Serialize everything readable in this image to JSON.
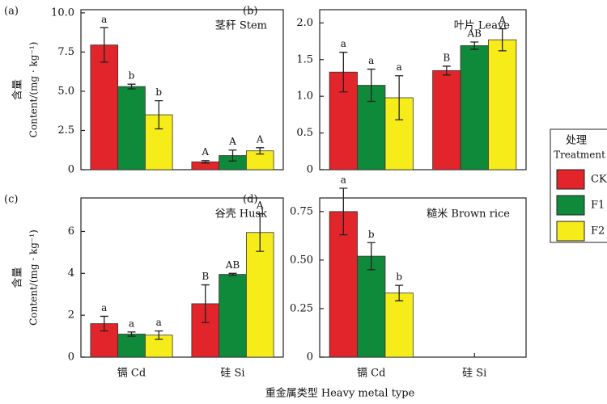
{
  "chart_data": [
    {
      "type": "bar",
      "panel": "(a)",
      "title": "茎秆 Stem",
      "ylabel": [
        "含量",
        "Content/(mg · kg⁻¹)"
      ],
      "categories": [
        null,
        null
      ],
      "ylim": [
        0,
        10.2
      ],
      "yticks": [
        0,
        2.5,
        {
          "value": 5,
          "label": "5.0"
        },
        7.5,
        {
          "value": 10,
          "label": "10.0"
        }
      ],
      "series": [
        {
          "color": "#e2242b",
          "values": [
            7.95,
            0.5
          ],
          "errors": [
            1.1,
            0.08
          ],
          "labels": [
            "a",
            "A"
          ]
        },
        {
          "color": "#0f8a3a",
          "values": [
            5.3,
            0.9
          ],
          "errors": [
            0.15,
            0.35
          ],
          "labels": [
            "b",
            "A"
          ]
        },
        {
          "color": "#f6ec1a",
          "values": [
            3.5,
            1.2
          ],
          "errors": [
            0.9,
            0.2
          ],
          "labels": [
            "b",
            "A"
          ]
        }
      ]
    },
    {
      "type": "bar",
      "panel": "(b)",
      "title": "叶片 Leave",
      "categories": [
        null,
        null
      ],
      "ylim": [
        0,
        2.18
      ],
      "yticks": [
        0,
        0.5,
        {
          "value": 1,
          "label": "1.0"
        },
        1.5,
        {
          "value": 2,
          "label": "2.0"
        }
      ],
      "series": [
        {
          "color": "#e2242b",
          "values": [
            1.33,
            1.35
          ],
          "errors": [
            0.27,
            0.06
          ],
          "labels": [
            "a",
            "B"
          ]
        },
        {
          "color": "#0f8a3a",
          "values": [
            1.15,
            1.69
          ],
          "errors": [
            0.22,
            0.05
          ],
          "labels": [
            "a",
            "AB"
          ]
        },
        {
          "color": "#f6ec1a",
          "values": [
            0.98,
            1.77
          ],
          "errors": [
            0.3,
            0.15
          ],
          "labels": [
            "a",
            "A"
          ]
        }
      ]
    },
    {
      "type": "bar",
      "panel": "(c)",
      "title": "谷壳 Husk",
      "ylabel": [
        "含量",
        "Content/(mg · kg⁻¹)"
      ],
      "categories": [
        "镉 Cd",
        "硅 Si"
      ],
      "ylim": [
        0,
        7.6
      ],
      "yticks": [
        0,
        2,
        4,
        6
      ],
      "series": [
        {
          "color": "#e2242b",
          "values": [
            1.6,
            2.55
          ],
          "errors": [
            0.35,
            0.9
          ],
          "labels": [
            "a",
            "B"
          ]
        },
        {
          "color": "#0f8a3a",
          "values": [
            1.1,
            3.95
          ],
          "errors": [
            0.1,
            0.05
          ],
          "labels": [
            "a",
            "AB"
          ]
        },
        {
          "color": "#f6ec1a",
          "values": [
            1.05,
            5.95
          ],
          "errors": [
            0.2,
            0.9
          ],
          "labels": [
            "a",
            "A"
          ]
        }
      ]
    },
    {
      "type": "bar",
      "panel": "(d)",
      "title": "糙米 Brown rice",
      "categories": [
        "镉 Cd",
        "硅 Si"
      ],
      "ylim": [
        0,
        0.82
      ],
      "yticks": [
        0,
        0.25,
        {
          "value": 0.5,
          "label": "0.50"
        },
        0.75
      ],
      "series": [
        {
          "color": "#e2242b",
          "values": [
            0.75,
            0
          ],
          "errors": [
            0.12,
            0
          ],
          "labels": [
            "a",
            null
          ]
        },
        {
          "color": "#0f8a3a",
          "values": [
            0.52,
            0
          ],
          "errors": [
            0.07,
            0
          ],
          "labels": [
            "b",
            null
          ]
        },
        {
          "color": "#f6ec1a",
          "values": [
            0.33,
            0
          ],
          "errors": [
            0.04,
            0
          ],
          "labels": [
            "b",
            null
          ]
        }
      ]
    }
  ],
  "xlabel": "重金属类型 Heavy metal type",
  "legend": {
    "title": [
      "处理",
      "Treatment"
    ],
    "items": [
      {
        "name": "CK",
        "color": "#e2242b"
      },
      {
        "name": "F1",
        "color": "#0f8a3a"
      },
      {
        "name": "F2",
        "color": "#f6ec1a"
      }
    ]
  }
}
